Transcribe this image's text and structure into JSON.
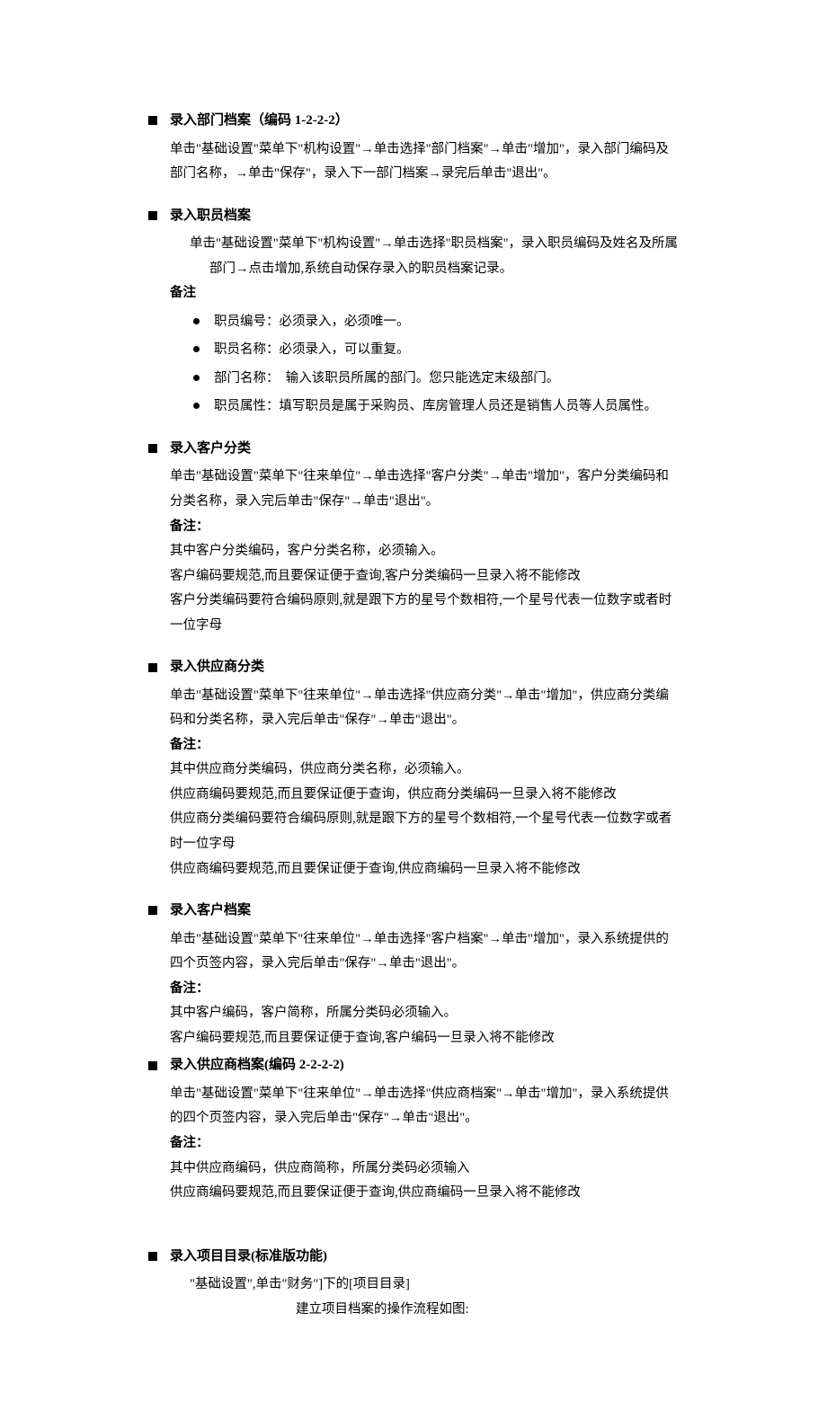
{
  "sections": [
    {
      "title": "录入部门档案（编码 1-2-2-2）",
      "body": [
        "单击\"基础设置\"菜单下\"机构设置\"→单击选择\"部门档案\"→单击\"增加\"，录入部门编码及部门名称，→单击\"保存\"，录入下一部门档案→录完后单击\"退出\"。"
      ]
    },
    {
      "title": "录入职员档案",
      "body_indent": [
        "单击\"基础设置\"菜单下\"机构设置\"→单击选择\"职员档案\"，录入职员编码及姓名及所属部门→点击增加,系统自动保存录入的职员档案记录。"
      ],
      "note": "备注",
      "sublist": [
        "职员编号：必须录入，必须唯一。",
        "职员名称：必须录入，可以重复。",
        "部门名称：　输入该职员所属的部门。您只能选定末级部门。",
        "职员属性：填写职员是属于采购员、库房管理人员还是销售人员等人员属性。"
      ]
    },
    {
      "title": "录入客户分类",
      "body": [
        "单击\"基础设置\"菜单下\"往来单位\"→单击选择\"客户分类\"→单击\"增加\"，客户分类编码和分类名称，录入完后单击\"保存\"→单击\"退出\"。"
      ],
      "note": "备注：",
      "notes": [
        "其中客户分类编码，客户分类名称，必须输入。",
        "客户编码要规范,而且要保证便于查询,客户分类编码一旦录入将不能修改",
        "客户分类编码要符合编码原则,就是跟下方的星号个数相符,一个星号代表一位数字或者时一位字母"
      ]
    },
    {
      "title": "录入供应商分类",
      "body": [
        "单击\"基础设置\"菜单下\"往来单位\"→单击选择\"供应商分类\"→单击\"增加\"，供应商分类编码和分类名称，录入完后单击\"保存\"→单击\"退出\"。"
      ],
      "note": "备注：",
      "notes": [
        "其中供应商分类编码，供应商分类名称，必须输入。",
        "供应商编码要规范,而且要保证便于查询，供应商分类编码一旦录入将不能修改",
        "供应商分类编码要符合编码原则,就是跟下方的星号个数相符,一个星号代表一位数字或者时一位字母",
        "供应商编码要规范,而且要保证便于查询,供应商编码一旦录入将不能修改"
      ]
    },
    {
      "title": "录入客户档案",
      "body": [
        "单击\"基础设置\"菜单下\"往来单位\"→单击选择\"客户档案\"→单击\"增加\"，录入系统提供的四个页签内容，录入完后单击\"保存\"→单击\"退出\"。"
      ],
      "note": "备注：",
      "notes": [
        "其中客户编码，客户简称，所属分类码必须输入。",
        "客户编码要规范,而且要保证便于查询,客户编码一旦录入将不能修改"
      ],
      "tight_bottom": true
    },
    {
      "title": "录入供应商档案(编码 2-2-2-2)",
      "body": [
        "单击\"基础设置\"菜单下\"往来单位\"→单击选择\"供应商档案\"→单击\"增加\"，录入系统提供的四个页签内容，录入完后单击\"保存\"→单击\"退出\"。"
      ],
      "note": "备注：",
      "notes": [
        "其中供应商编码，供应商简称，所属分类码必须输入",
        "供应商编码要规范,而且要保证便于查询,供应商编码一旦录入将不能修改"
      ],
      "large_gap_after": true
    },
    {
      "title": "录入项目目录(标准版功能)",
      "body_indent": [
        "\"基础设置\",单击\"财务\"]下的[项目目录]"
      ],
      "centered": "建立项目档案的操作流程如图:"
    }
  ]
}
